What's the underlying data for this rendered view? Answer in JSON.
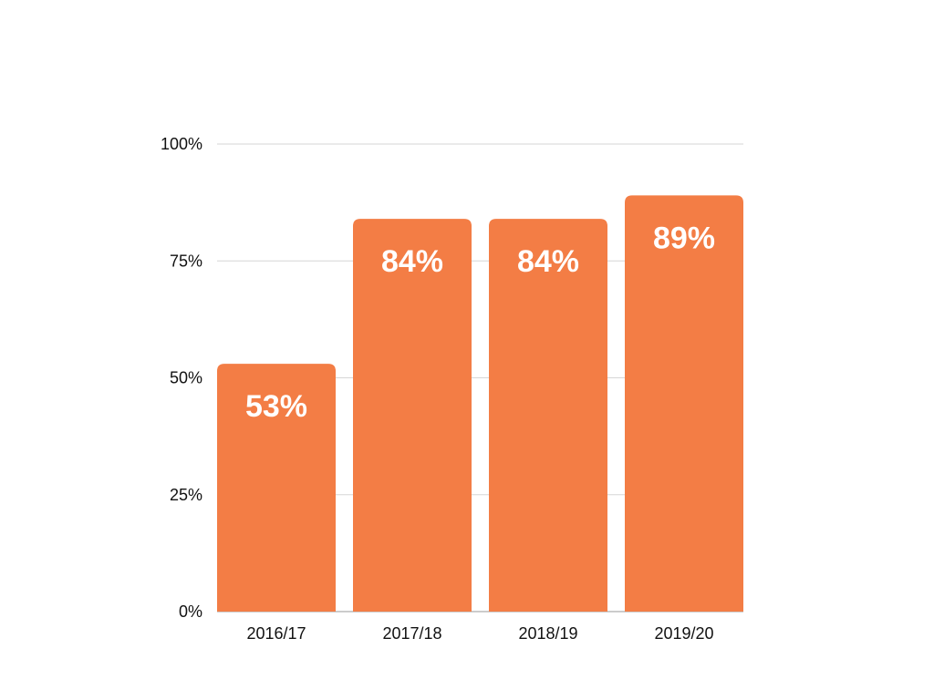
{
  "chart_data": {
    "type": "bar",
    "categories": [
      "2016/17",
      "2017/18",
      "2018/19",
      "2019/20"
    ],
    "values": [
      53,
      84,
      84,
      89
    ],
    "data_labels": [
      "53%",
      "84%",
      "84%",
      "89%"
    ],
    "title": "",
    "xlabel": "",
    "ylabel": "",
    "ylim": [
      0,
      100
    ],
    "yticks": [
      {
        "value": 0,
        "label": "0%"
      },
      {
        "value": 25,
        "label": "25%"
      },
      {
        "value": 50,
        "label": "50%"
      },
      {
        "value": 75,
        "label": "75%"
      },
      {
        "value": 100,
        "label": "100%"
      }
    ],
    "grid": true,
    "legend": "none",
    "bar_color": "#F37D45",
    "grid_color": "#D6D6D6"
  }
}
